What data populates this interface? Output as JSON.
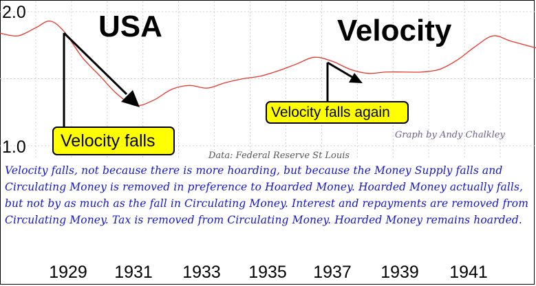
{
  "chart_data": {
    "type": "line",
    "title_left": "USA",
    "title_right": "Velocity",
    "x_tick_labels": [
      "1929",
      "1931",
      "1933",
      "1935",
      "1937",
      "1939",
      "1941"
    ],
    "y_tick_labels": [
      "2.0",
      "1.0"
    ],
    "ylim": [
      1.0,
      2.0
    ],
    "xlim": [
      1928.0,
      1943.0
    ],
    "grid": true,
    "series": [
      {
        "color": "#e8352a",
        "points": [
          [
            1928.0,
            1.84
          ],
          [
            1928.5,
            1.82
          ],
          [
            1929.0,
            1.88
          ],
          [
            1929.4,
            1.93
          ],
          [
            1929.8,
            1.85
          ],
          [
            1930.3,
            1.66
          ],
          [
            1930.8,
            1.52
          ],
          [
            1931.3,
            1.38
          ],
          [
            1931.8,
            1.3
          ],
          [
            1932.3,
            1.34
          ],
          [
            1932.8,
            1.42
          ],
          [
            1933.3,
            1.45
          ],
          [
            1933.8,
            1.43
          ],
          [
            1934.3,
            1.47
          ],
          [
            1934.8,
            1.5
          ],
          [
            1935.3,
            1.52
          ],
          [
            1935.8,
            1.56
          ],
          [
            1936.3,
            1.61
          ],
          [
            1936.8,
            1.66
          ],
          [
            1937.3,
            1.63
          ],
          [
            1937.8,
            1.57
          ],
          [
            1938.3,
            1.54
          ],
          [
            1938.8,
            1.55
          ],
          [
            1939.3,
            1.55
          ],
          [
            1939.8,
            1.55
          ],
          [
            1940.3,
            1.57
          ],
          [
            1940.8,
            1.64
          ],
          [
            1941.3,
            1.74
          ],
          [
            1941.8,
            1.82
          ],
          [
            1942.3,
            1.78
          ],
          [
            1943.0,
            1.73
          ]
        ]
      }
    ],
    "annotations": [
      {
        "text": "Velocity falls"
      },
      {
        "text": "Velocity falls again"
      }
    ]
  },
  "credit": "Graph by Andy Chalkley",
  "source": "Data: Federal Reserve St Louis",
  "caption": "Velocity falls, not because there is more hoarding, but because the Money Supply falls and Circulating Money is removed in preference to Hoarded Money. Hoarded Money actually falls, but not by as much as the fall in Circulating Money. Interest and repayments are removed from Circulating Money. Tax is removed from Circulating Money. Hoarded Money remains hoarded.",
  "colors": {
    "line": "#e8352a",
    "callout": "#ffff00",
    "caption": "#1515c8",
    "credit": "#6f5f88",
    "grid": "#cfcfcf"
  }
}
